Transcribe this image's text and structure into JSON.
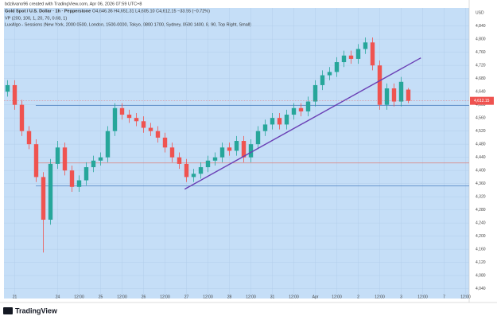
{
  "chart_data": {
    "type": "candlestick",
    "attribution": "bdzilvano96 created with TradingView.com, Apr 06, 2026 07:59 UTC+8",
    "title": "Gold Spot / U.S. Dollar · 1h · Pepperstone",
    "ohlc_text": "O4,646.36  H4,651.31  L4,605.10  C4,612.15  −33.55 (−0.72%)",
    "indicators": [
      "VP (200, 100, 1, 20, 70, 0.68, 1)",
      "LuxAlgo - Sessions (New York, 2000 0500, London, 1500-0000, Tokyo, 0800 1700, Sydney, 0500 1400, 8, 90, Top Right, Small)"
    ],
    "currency": "USD",
    "brand": "TradingView",
    "last_label": "4,612.15",
    "up_color": "#26a69a",
    "down_color": "#ef5350",
    "background": "#c5def7",
    "x": [
      -4,
      0,
      4,
      8,
      12,
      16,
      20,
      24,
      28,
      32,
      36,
      40,
      44,
      48,
      52,
      56,
      60,
      64,
      68,
      72,
      76,
      80,
      84,
      88,
      92,
      96,
      100,
      104,
      108,
      112,
      116,
      120,
      124,
      128,
      132,
      136,
      140,
      144,
      148,
      152,
      156,
      160,
      164,
      168,
      172,
      176,
      180,
      184,
      188,
      192,
      196,
      200,
      204,
      208,
      212,
      216,
      220
    ],
    "open": [
      4640,
      4660,
      4600,
      4520,
      4480,
      4380,
      4250,
      4420,
      4470,
      4400,
      4350,
      4370,
      4410,
      4430,
      4440,
      4520,
      4590,
      4570,
      4560,
      4550,
      4530,
      4520,
      4500,
      4470,
      4440,
      4420,
      4380,
      4390,
      4410,
      4430,
      4440,
      4470,
      4460,
      4490,
      4440,
      4480,
      4520,
      4540,
      4560,
      4540,
      4570,
      4590,
      4580,
      4610,
      4660,
      4690,
      4700,
      4730,
      4750,
      4740,
      4770,
      4790,
      4720,
      4600,
      4650,
      4610,
      4646.36
    ],
    "high": [
      4675,
      4675,
      4615,
      4535,
      4495,
      4395,
      4435,
      4490,
      4485,
      4415,
      4385,
      4425,
      4445,
      4455,
      4535,
      4605,
      4605,
      4585,
      4575,
      4565,
      4545,
      4535,
      4515,
      4485,
      4455,
      4435,
      4405,
      4425,
      4445,
      4455,
      4485,
      4485,
      4505,
      4505,
      4495,
      4535,
      4555,
      4575,
      4575,
      4585,
      4605,
      4605,
      4625,
      4675,
      4705,
      4715,
      4745,
      4765,
      4765,
      4785,
      4805,
      4805,
      4735,
      4665,
      4665,
      4685,
      4651.31
    ],
    "low": [
      4625,
      4585,
      4505,
      4465,
      4365,
      4150,
      4235,
      4405,
      4385,
      4335,
      4335,
      4355,
      4395,
      4415,
      4425,
      4505,
      4555,
      4545,
      4535,
      4515,
      4505,
      4485,
      4455,
      4425,
      4405,
      4365,
      4365,
      4375,
      4395,
      4415,
      4425,
      4445,
      4445,
      4425,
      4425,
      4465,
      4505,
      4525,
      4525,
      4525,
      4555,
      4565,
      4565,
      4595,
      4645,
      4675,
      4685,
      4715,
      4725,
      4725,
      4755,
      4705,
      4585,
      4585,
      4595,
      4595,
      4605.1
    ],
    "close": [
      4660,
      4600,
      4520,
      4480,
      4380,
      4250,
      4420,
      4470,
      4400,
      4350,
      4370,
      4410,
      4430,
      4440,
      4520,
      4590,
      4570,
      4560,
      4550,
      4530,
      4520,
      4500,
      4470,
      4440,
      4420,
      4380,
      4390,
      4410,
      4430,
      4440,
      4470,
      4460,
      4490,
      4440,
      4480,
      4520,
      4540,
      4560,
      4540,
      4570,
      4590,
      4580,
      4610,
      4660,
      4690,
      4700,
      4730,
      4750,
      4740,
      4770,
      4790,
      4720,
      4600,
      4650,
      4610,
      4670,
      4612.15
    ],
    "hlines": [
      {
        "value": 4598,
        "color": "#4a7fc1"
      },
      {
        "value": 4423,
        "color": "#d98a8a"
      },
      {
        "value": 4353,
        "color": "#4a7fc1"
      }
    ],
    "trendline": {
      "x": [
        95,
        227
      ],
      "y": [
        4343,
        4743
      ],
      "color": "#6a3fb5"
    },
    "xlim": [
      -6,
      254
    ],
    "ylim": [
      4010,
      4895
    ],
    "xticks": [
      {
        "value": 0,
        "label": "21"
      },
      {
        "value": 24,
        "label": "24"
      },
      {
        "value": 36,
        "label": "12:00"
      },
      {
        "value": 48,
        "label": "25"
      },
      {
        "value": 60,
        "label": "12:00"
      },
      {
        "value": 72,
        "label": "26"
      },
      {
        "value": 84,
        "label": "12:00"
      },
      {
        "value": 96,
        "label": "27"
      },
      {
        "value": 108,
        "label": "12:00"
      },
      {
        "value": 120,
        "label": "28"
      },
      {
        "value": 132,
        "label": "12:00"
      },
      {
        "value": 144,
        "label": "31"
      },
      {
        "value": 156,
        "label": "12:00"
      },
      {
        "value": 168,
        "label": "Apr"
      },
      {
        "value": 180,
        "label": "12:00"
      },
      {
        "value": 192,
        "label": "2"
      },
      {
        "value": 204,
        "label": "12:00"
      },
      {
        "value": 216,
        "label": "3"
      },
      {
        "value": 228,
        "label": "12:00"
      },
      {
        "value": 240,
        "label": "7"
      },
      {
        "value": 252,
        "label": "12:00"
      }
    ],
    "yticks": [
      {
        "value": 4040,
        "label": "4,040"
      },
      {
        "value": 4080,
        "label": "4,080"
      },
      {
        "value": 4120,
        "label": "4,120"
      },
      {
        "value": 4160,
        "label": "4,160"
      },
      {
        "value": 4200,
        "label": "4,200"
      },
      {
        "value": 4240,
        "label": "4,240"
      },
      {
        "value": 4280,
        "label": "4,280"
      },
      {
        "value": 4320,
        "label": "4,320"
      },
      {
        "value": 4360,
        "label": "4,360"
      },
      {
        "value": 4400,
        "label": "4,400"
      },
      {
        "value": 4440,
        "label": "4,440"
      },
      {
        "value": 4480,
        "label": "4,480"
      },
      {
        "value": 4520,
        "label": "4,520"
      },
      {
        "value": 4560,
        "label": "4,560"
      },
      {
        "value": 4600,
        "label": "4,600"
      },
      {
        "value": 4640,
        "label": "4,640"
      },
      {
        "value": 4680,
        "label": "4,680"
      },
      {
        "value": 4720,
        "label": "4,720"
      },
      {
        "value": 4760,
        "label": "4,760"
      },
      {
        "value": 4800,
        "label": "4,800"
      },
      {
        "value": 4840,
        "label": "4,840"
      }
    ]
  }
}
